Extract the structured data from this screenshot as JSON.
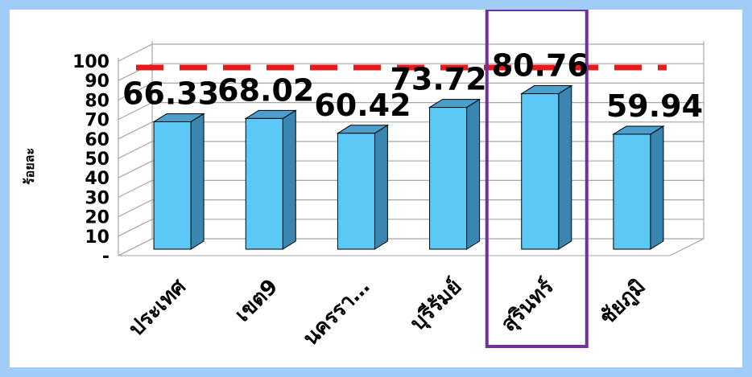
{
  "chart_data": {
    "type": "bar",
    "categories": [
      "ประเทศ",
      "เขต9",
      "นครรา…",
      "บุรีรัมย์",
      "สุรินทร์",
      "ชัยภูมิ"
    ],
    "values": [
      66.33,
      68.02,
      60.42,
      73.72,
      80.76,
      59.94
    ],
    "value_labels": [
      "66.33",
      "68.02",
      "60.42",
      "73.72",
      "80.76",
      "59.94"
    ],
    "ylabel": "ร้อยละ",
    "ylim": [
      0,
      100
    ],
    "y_ticks": [
      "-",
      "10",
      "20",
      "30",
      "40",
      "50",
      "60",
      "70",
      "80",
      "90",
      "100"
    ],
    "target_value": 100,
    "highlighted_category": "สุรินทร์",
    "grid": true,
    "three_d": true,
    "colors": {
      "bar_front": "#5bc8f5",
      "bar_side": "#3a86b0",
      "bar_top": "#4a9fcc",
      "target_line": "#e8191b",
      "highlight_box": "#7030a0",
      "highlight_label": "#31849b",
      "label": "#000000",
      "background_border": "#9fcdf8"
    }
  }
}
